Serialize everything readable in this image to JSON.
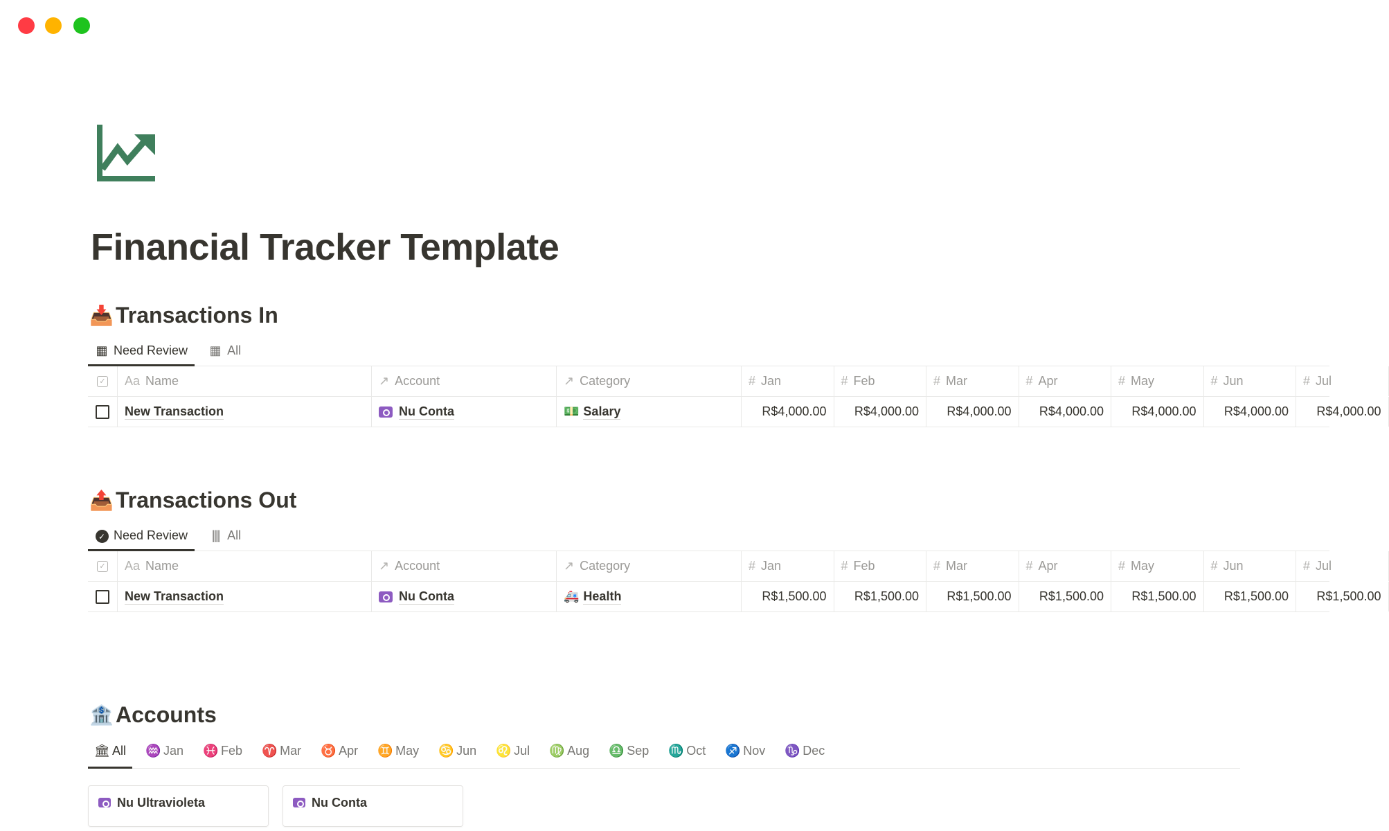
{
  "window": {
    "controls": {
      "close_color": "#ff3b44",
      "minimize_color": "#ffb300",
      "maximize_color": "#1ec31e"
    }
  },
  "page": {
    "icon": "chart-trending-up-icon",
    "icon_color": "#3f7f5c",
    "title": "Financial Tracker Template"
  },
  "transactions_in": {
    "emoji": "📥",
    "title": "Transactions In",
    "tabs": [
      {
        "label": "Need Review",
        "icon": "table-icon",
        "active": true
      },
      {
        "label": "All",
        "icon": "table-icon",
        "active": false
      }
    ],
    "columns": {
      "name": "Name",
      "name_prefix": "Aa",
      "account": "Account",
      "category": "Category",
      "months": [
        "Jan",
        "Feb",
        "Mar",
        "Apr",
        "May",
        "Jun",
        "Jul"
      ]
    },
    "rows": [
      {
        "name": "New Transaction",
        "account": "Nu Conta",
        "category": "Salary",
        "category_emoji": "💵",
        "checked": false,
        "values": [
          "R$4,000.00",
          "R$4,000.00",
          "R$4,000.00",
          "R$4,000.00",
          "R$4,000.00",
          "R$4,000.00",
          "R$4,000.00"
        ]
      }
    ]
  },
  "transactions_out": {
    "emoji": "📤",
    "title": "Transactions Out",
    "tabs": [
      {
        "label": "Need Review",
        "icon": "check-circle-icon",
        "active": true
      },
      {
        "label": "All",
        "icon": "barcode-icon",
        "active": false
      }
    ],
    "columns": {
      "name": "Name",
      "name_prefix": "Aa",
      "account": "Account",
      "category": "Category",
      "months": [
        "Jan",
        "Feb",
        "Mar",
        "Apr",
        "May",
        "Jun",
        "Jul"
      ]
    },
    "rows": [
      {
        "name": "New Transaction",
        "account": "Nu Conta",
        "category": "Health",
        "category_emoji": "🚑",
        "checked": false,
        "values": [
          "R$1,500.00",
          "R$1,500.00",
          "R$1,500.00",
          "R$1,500.00",
          "R$1,500.00",
          "R$1,500.00",
          "R$1,500.00"
        ]
      }
    ]
  },
  "accounts": {
    "emoji": "🏦",
    "title": "Accounts",
    "tabs": [
      {
        "label": "All",
        "glyph": "🏛"
      },
      {
        "label": "Jan",
        "glyph": "♒"
      },
      {
        "label": "Feb",
        "glyph": "♓"
      },
      {
        "label": "Mar",
        "glyph": "♈"
      },
      {
        "label": "Apr",
        "glyph": "♉"
      },
      {
        "label": "May",
        "glyph": "♊"
      },
      {
        "label": "Jun",
        "glyph": "♋"
      },
      {
        "label": "Jul",
        "glyph": "♌"
      },
      {
        "label": "Aug",
        "glyph": "♍"
      },
      {
        "label": "Sep",
        "glyph": "♎"
      },
      {
        "label": "Oct",
        "glyph": "♏"
      },
      {
        "label": "Nov",
        "glyph": "♐"
      },
      {
        "label": "Dec",
        "glyph": "♑"
      }
    ],
    "cards": [
      {
        "name": "Nu Ultravioleta"
      },
      {
        "name": "Nu Conta"
      }
    ]
  }
}
